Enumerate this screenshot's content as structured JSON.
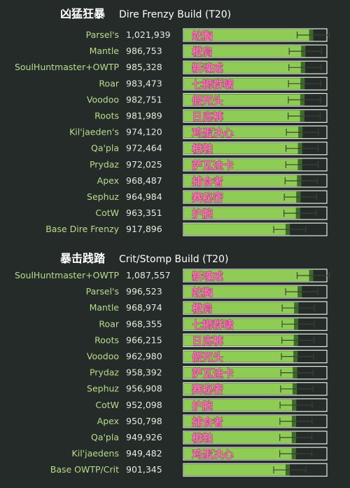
{
  "colors": {
    "background": "#242b29",
    "bar_fill": "#8fcc55",
    "bar_border": "#e6ede2",
    "bar_dark_cap": "#3f6b2a",
    "whisker": "#3a4434",
    "name_text": "#b9dc8c",
    "value_text": "#e4ecde",
    "title_text": "#ffffff",
    "tag_fill": "#ff74b7",
    "tag_stroke": "#4a1b33"
  },
  "chart_data": [
    {
      "type": "bar",
      "orientation": "horizontal",
      "title": "凶猛狂暴",
      "subtitle": "Dire Frenzy Build (T20)",
      "xlim": [
        0,
        1100000
      ],
      "categories": [
        "Parsel's",
        "Mantle",
        "SoulHuntmaster+OWTP",
        "Roar",
        "Voodoo",
        "Roots",
        "Kil'jaeden's",
        "Qa'pla",
        "Prydaz",
        "Apex",
        "Sephuz",
        "CotW",
        "Base Dire Frenzy"
      ],
      "values": [
        1021939,
        986753,
        985328,
        983473,
        982751,
        981989,
        974120,
        972464,
        972025,
        968487,
        964984,
        963351,
        917896
      ],
      "value_labels": [
        "1,021,939",
        "986,753",
        "985,328",
        "983,473",
        "982,751",
        "981,989",
        "974,120",
        "972,464",
        "972,025",
        "968,487",
        "964,984",
        "963,351",
        "917,896"
      ],
      "annotations": [
        "蛇胸",
        "橙肩",
        "新魂戒",
        "七狮群啸",
        "假死头",
        "日底裤",
        "鸡蛋决心",
        "橙鞋",
        "萨瓦迪卡",
        "捕食者",
        "赛秘密",
        "护腕",
        ""
      ]
    },
    {
      "type": "bar",
      "orientation": "horizontal",
      "title": "暴击践踏",
      "subtitle": "Crit/Stomp Build (T20)",
      "xlim": [
        0,
        1100000
      ],
      "categories": [
        "SoulHuntmaster+OWTP",
        "Parsel's",
        "Mantle",
        "Roar",
        "Roots",
        "Voodoo",
        "Prydaz",
        "Sephuz",
        "CotW",
        "Apex",
        "Qa'pla",
        "Kil'jaedens",
        "Base OWTP/Crit"
      ],
      "values": [
        1087557,
        996523,
        968974,
        968355,
        966215,
        962980,
        958392,
        956908,
        952098,
        950798,
        949926,
        949482,
        901345
      ],
      "value_labels": [
        "1,087,557",
        "996,523",
        "968,974",
        "968,355",
        "966,215",
        "962,980",
        "958,392",
        "956,908",
        "952,098",
        "950,798",
        "949,926",
        "949,482",
        "901,345"
      ],
      "annotations": [
        "新魂戒",
        "蛇胸",
        "橙肩",
        "七狮群啸",
        "日底裤",
        "假死头",
        "萨瓦迪卡",
        "赛秘密",
        "护腕",
        "捕食者",
        "橙鞋",
        "鸡蛋决心",
        ""
      ]
    }
  ]
}
